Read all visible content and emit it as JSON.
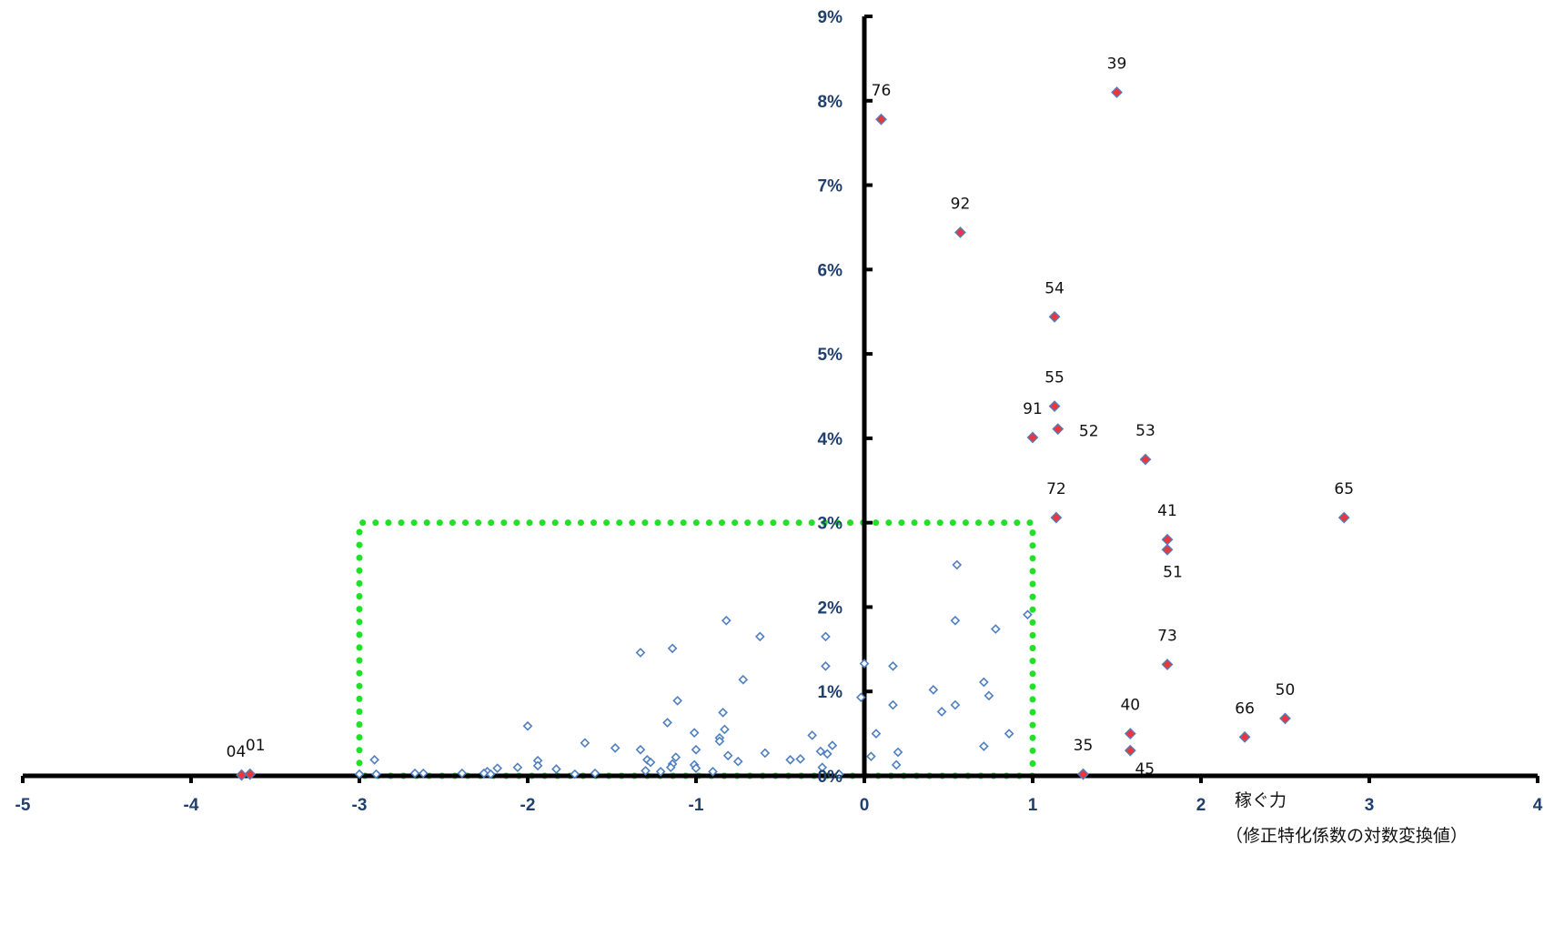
{
  "colors": {
    "axis": "#000000",
    "tick_label": "#1f3f6e",
    "highlight_fill": "#e8383d",
    "highlight_stroke": "#4f7fc0",
    "other_stroke": "#4f7fc0",
    "box": "#22e02a"
  },
  "chart_data": {
    "type": "scatter",
    "title": "",
    "xlabel": "稼ぐ力",
    "xlabel_line2": "（修正特化係数の対数変換値）",
    "ylabel": "",
    "xlim": [
      -5,
      4
    ],
    "ylim": [
      0,
      9
    ],
    "x_ticks": [
      -5,
      -4,
      -3,
      -2,
      -1,
      0,
      1,
      2,
      3,
      4
    ],
    "y_ticks": [
      0,
      1,
      2,
      3,
      4,
      5,
      6,
      7,
      8,
      9
    ],
    "x_tick_labels": [
      "-5",
      "-4",
      "-3",
      "-2",
      "-1",
      "0",
      "1",
      "2",
      "3",
      "4"
    ],
    "y_tick_labels": [
      "0%",
      "1%",
      "2%",
      "3%",
      "4%",
      "5%",
      "6%",
      "7%",
      "8%",
      "9%"
    ],
    "grid": false,
    "highlight_box": {
      "x": [
        -3,
        1
      ],
      "y": [
        0,
        3
      ]
    },
    "labeled_points": [
      {
        "label": "39",
        "x": 1.5,
        "y": 8.1
      },
      {
        "label": "76",
        "x": 0.1,
        "y": 7.78
      },
      {
        "label": "92",
        "x": 0.57,
        "y": 6.44
      },
      {
        "label": "54",
        "x": 1.13,
        "y": 5.44
      },
      {
        "label": "55",
        "x": 1.13,
        "y": 4.38
      },
      {
        "label": "91",
        "x": 1.0,
        "y": 4.01
      },
      {
        "label": "52",
        "x": 1.15,
        "y": 4.11
      },
      {
        "label": "53",
        "x": 1.67,
        "y": 3.75
      },
      {
        "label": "72",
        "x": 1.14,
        "y": 3.06
      },
      {
        "label": "65",
        "x": 2.85,
        "y": 3.06
      },
      {
        "label": "41",
        "x": 1.8,
        "y": 2.8
      },
      {
        "label": "51",
        "x": 1.8,
        "y": 2.68
      },
      {
        "label": "73",
        "x": 1.8,
        "y": 1.32
      },
      {
        "label": "50",
        "x": 2.5,
        "y": 0.68
      },
      {
        "label": "66",
        "x": 2.26,
        "y": 0.46
      },
      {
        "label": "40",
        "x": 1.58,
        "y": 0.5
      },
      {
        "label": "45",
        "x": 1.58,
        "y": 0.3
      },
      {
        "label": "35",
        "x": 1.3,
        "y": 0.02
      },
      {
        "label": "04",
        "x": -3.7,
        "y": 0.01
      },
      {
        "label": "01",
        "x": -3.65,
        "y": 0.02
      }
    ],
    "other_points": [
      [
        0.55,
        2.5
      ],
      [
        0.54,
        1.84
      ],
      [
        0.78,
        1.74
      ],
      [
        0.97,
        1.91
      ],
      [
        -0.82,
        1.84
      ],
      [
        -0.62,
        1.65
      ],
      [
        -0.23,
        1.65
      ],
      [
        -1.14,
        1.51
      ],
      [
        -1.33,
        1.46
      ],
      [
        -0.72,
        1.14
      ],
      [
        -0.23,
        1.3
      ],
      [
        0.0,
        1.33
      ],
      [
        0.17,
        1.3
      ],
      [
        0.41,
        1.02
      ],
      [
        0.71,
        1.11
      ],
      [
        0.74,
        0.95
      ],
      [
        0.17,
        0.84
      ],
      [
        0.54,
        0.84
      ],
      [
        0.46,
        0.76
      ],
      [
        -0.02,
        0.93
      ],
      [
        -1.11,
        0.89
      ],
      [
        -1.17,
        0.63
      ],
      [
        -0.84,
        0.75
      ],
      [
        -0.83,
        0.55
      ],
      [
        -0.86,
        0.45
      ],
      [
        -0.86,
        0.41
      ],
      [
        -1.01,
        0.51
      ],
      [
        -0.31,
        0.48
      ],
      [
        0.07,
        0.5
      ],
      [
        0.86,
        0.5
      ],
      [
        -2.0,
        0.59
      ],
      [
        -1.66,
        0.39
      ],
      [
        -1.48,
        0.33
      ],
      [
        -1.33,
        0.31
      ],
      [
        -1.0,
        0.31
      ],
      [
        -0.19,
        0.36
      ],
      [
        -0.26,
        0.29
      ],
      [
        0.71,
        0.35
      ],
      [
        0.2,
        0.28
      ],
      [
        -0.59,
        0.27
      ],
      [
        -0.81,
        0.24
      ],
      [
        -0.75,
        0.17
      ],
      [
        -0.44,
        0.19
      ],
      [
        -0.38,
        0.2
      ],
      [
        -0.22,
        0.26
      ],
      [
        0.04,
        0.23
      ],
      [
        -1.29,
        0.19
      ],
      [
        -1.27,
        0.16
      ],
      [
        -1.12,
        0.22
      ],
      [
        -1.14,
        0.14
      ],
      [
        -1.15,
        0.1
      ],
      [
        -1.01,
        0.13
      ],
      [
        -1.0,
        0.09
      ],
      [
        -2.91,
        0.19
      ],
      [
        -1.94,
        0.18
      ],
      [
        -1.94,
        0.12
      ],
      [
        -2.06,
        0.1
      ],
      [
        -2.18,
        0.09
      ],
      [
        -1.83,
        0.08
      ],
      [
        -1.3,
        0.06
      ],
      [
        -1.21,
        0.05
      ],
      [
        -2.24,
        0.05
      ],
      [
        -2.26,
        0.03
      ],
      [
        -2.22,
        0.02
      ],
      [
        -2.9,
        0.02
      ],
      [
        -2.67,
        0.03
      ],
      [
        -2.62,
        0.03
      ],
      [
        -2.39,
        0.03
      ],
      [
        -1.72,
        0.02
      ],
      [
        -1.6,
        0.03
      ],
      [
        0.19,
        0.13
      ],
      [
        -0.9,
        0.05
      ],
      [
        -0.25,
        0.1
      ],
      [
        -0.15,
        0.02
      ],
      [
        -3.0,
        0.02
      ]
    ]
  }
}
